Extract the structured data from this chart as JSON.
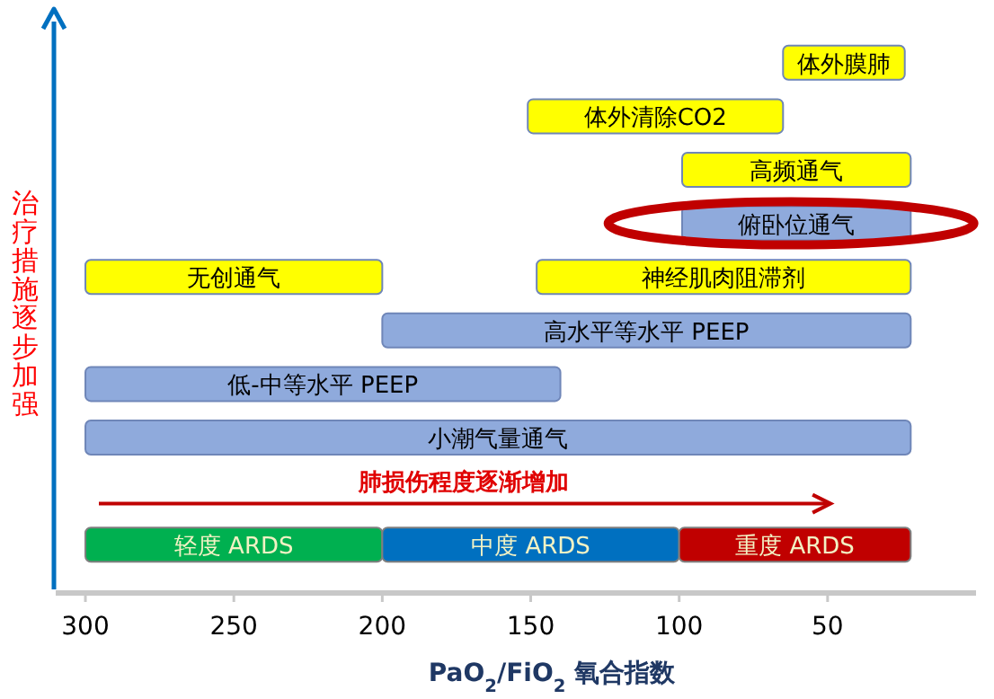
{
  "chart_data": {
    "type": "bar",
    "orientation": "horizontal",
    "xlabel": "PaO$_{2}$/FiO$_{2}$  氧合指数",
    "ylabel": "治疗措施逐步加强",
    "categories": [
      null,
      null,
      null,
      null,
      null,
      null,
      null,
      null,
      null,
      null
    ],
    "series": [
      {
        "name": "体外膜肺",
        "color": "#ffff00",
        "values": [
          41,
          null,
          null,
          null,
          null,
          null,
          null,
          null,
          null,
          null
        ],
        "base": [
          24,
          null,
          null,
          null,
          null,
          null,
          null,
          null,
          null,
          null
        ]
      },
      {
        "name": "体外清除CO2",
        "color": "#ffff00",
        "values": [
          null,
          86,
          null,
          null,
          null,
          null,
          null,
          null,
          null,
          null
        ],
        "base": [
          null,
          65,
          null,
          null,
          null,
          null,
          null,
          null,
          null,
          null
        ]
      },
      {
        "name": "高频通气",
        "color": "#ffff00",
        "values": [
          null,
          null,
          77,
          null,
          null,
          null,
          null,
          null,
          null,
          null
        ],
        "base": [
          null,
          null,
          22,
          null,
          null,
          null,
          null,
          null,
          null,
          null
        ]
      },
      {
        "name": "俯卧位通气",
        "color": "#8faadc",
        "values": [
          null,
          null,
          null,
          77,
          null,
          null,
          null,
          null,
          null,
          null
        ],
        "base": [
          null,
          null,
          null,
          22,
          null,
          null,
          null,
          null,
          null,
          null
        ]
      },
      {
        "name": "无创通气",
        "color": "#ffff00",
        "values": [
          null,
          null,
          null,
          null,
          100,
          null,
          null,
          null,
          null,
          null
        ],
        "base": [
          null,
          null,
          null,
          null,
          200,
          null,
          null,
          null,
          null,
          null
        ]
      },
      {
        "name": "神经肌肉阻滞剂",
        "color": "#ffff00",
        "values": [
          null,
          null,
          null,
          null,
          126,
          null,
          null,
          null,
          null,
          null
        ],
        "base": [
          null,
          null,
          null,
          null,
          22,
          null,
          null,
          null,
          null,
          null
        ]
      },
      {
        "name": "高水平等水平 PEEP",
        "color": "#8faadc",
        "values": [
          null,
          null,
          null,
          null,
          null,
          178,
          null,
          null,
          null,
          null
        ],
        "base": [
          null,
          null,
          null,
          null,
          null,
          22,
          null,
          null,
          null,
          null
        ]
      },
      {
        "name": "低-中等水平 PEEP",
        "color": "#8faadc",
        "values": [
          null,
          null,
          null,
          null,
          null,
          null,
          160,
          null,
          null,
          null
        ],
        "base": [
          null,
          null,
          null,
          null,
          null,
          null,
          140,
          null,
          null,
          null
        ]
      },
      {
        "name": "小潮气量通气",
        "color": "#8faadc",
        "values": [
          null,
          null,
          null,
          null,
          null,
          null,
          null,
          278,
          null,
          null
        ],
        "base": [
          null,
          null,
          null,
          null,
          null,
          null,
          null,
          22,
          null,
          null
        ]
      },
      {
        "name": "轻度 ARDS",
        "color": "#00b050",
        "values": [
          null,
          null,
          null,
          null,
          null,
          null,
          null,
          null,
          null,
          100
        ],
        "base": [
          null,
          null,
          null,
          null,
          null,
          null,
          null,
          null,
          null,
          200
        ]
      },
      {
        "name": "中度 ARDS",
        "color": "#0070c0",
        "values": [
          null,
          null,
          null,
          null,
          null,
          null,
          null,
          null,
          null,
          100
        ],
        "base": [
          null,
          null,
          null,
          null,
          null,
          null,
          null,
          null,
          null,
          100
        ]
      },
      {
        "name": "重度 ARDS",
        "color": "#c00000",
        "values": [
          null,
          null,
          null,
          null,
          null,
          null,
          null,
          null,
          null,
          78
        ],
        "base": [
          null,
          null,
          null,
          null,
          null,
          null,
          null,
          null,
          null,
          22
        ]
      }
    ],
    "xlim": [
      310,
      0
    ],
    "xticks": [
      300,
      250,
      200,
      150,
      100,
      50
    ],
    "annotations": [
      "肺损伤程度逐渐增加"
    ],
    "tick_labels": "x"
  }
}
